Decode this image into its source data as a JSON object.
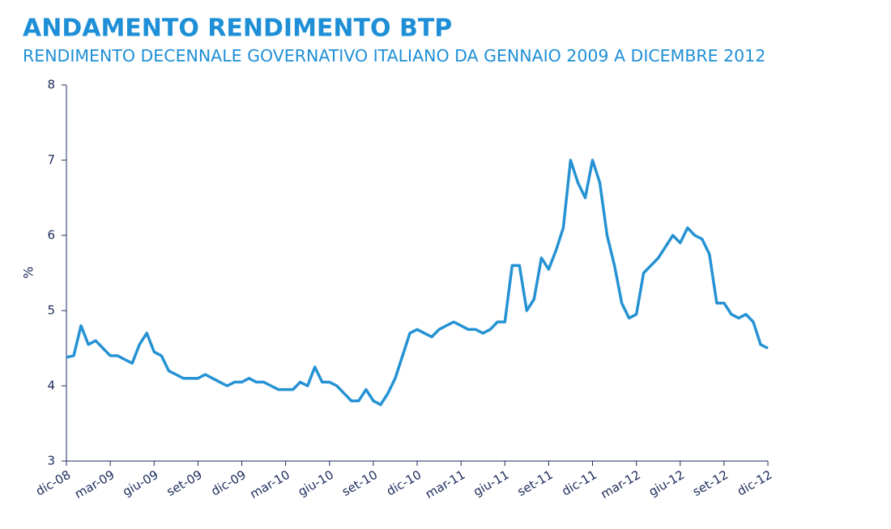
{
  "chart_data": {
    "type": "line",
    "title": "ANDAMENTO RENDIMENTO BTP",
    "subtitle": "RENDIMENTO DECENNALE GOVERNATIVO ITALIANO DA GENNAIO 2009 A DICEMBRE 2012",
    "y_label": "%",
    "color": "#2592d3",
    "categories": [
      "dic-08",
      null,
      null,
      null,
      null,
      null,
      "mar-09",
      null,
      null,
      null,
      null,
      null,
      "giu-09",
      null,
      null,
      null,
      null,
      null,
      "set-09",
      null,
      null,
      null,
      null,
      null,
      "dic-09",
      null,
      null,
      null,
      null,
      null,
      "mar-10",
      null,
      null,
      null,
      null,
      null,
      "giu-10",
      null,
      null,
      null,
      null,
      null,
      "set-10",
      null,
      null,
      null,
      null,
      null,
      "dic-10",
      null,
      null,
      null,
      null,
      null,
      "mar-11",
      null,
      null,
      null,
      null,
      null,
      "giu-11",
      null,
      null,
      null,
      null,
      null,
      "set-11",
      null,
      null,
      null,
      null,
      null,
      "dic-11",
      null,
      null,
      null,
      null,
      null,
      "mar-12",
      null,
      null,
      null,
      null,
      null,
      "giu-12",
      null,
      null,
      null,
      null,
      null,
      "set-12",
      null,
      null,
      null,
      null,
      null,
      "dic-12"
    ],
    "values": [
      4.38,
      4.4,
      4.8,
      4.55,
      4.6,
      4.5,
      4.4,
      4.4,
      4.35,
      4.3,
      4.55,
      4.7,
      4.45,
      4.4,
      4.2,
      4.15,
      4.1,
      4.1,
      4.1,
      4.15,
      4.1,
      4.05,
      4.0,
      4.05,
      4.05,
      4.1,
      4.05,
      4.05,
      4.0,
      3.95,
      3.95,
      3.95,
      4.05,
      4.0,
      4.25,
      4.05,
      4.05,
      4.0,
      3.9,
      3.8,
      3.8,
      3.95,
      3.8,
      3.75,
      3.9,
      4.1,
      4.4,
      4.7,
      4.75,
      4.7,
      4.65,
      4.75,
      4.8,
      4.85,
      4.8,
      4.75,
      4.75,
      4.7,
      4.75,
      4.85,
      4.85,
      5.6,
      5.6,
      5.0,
      5.15,
      5.7,
      5.55,
      5.8,
      6.1,
      7.0,
      6.7,
      6.5,
      7.0,
      6.7,
      6.0,
      5.6,
      5.1,
      4.9,
      4.95,
      5.5,
      5.6,
      5.7,
      5.85,
      6.0,
      5.9,
      6.1,
      6.0,
      5.95,
      5.75,
      5.1,
      5.1,
      4.95,
      4.9,
      4.95,
      4.85,
      4.55,
      4.5
    ],
    "ylim": [
      3,
      8
    ],
    "yticks": [
      3,
      4,
      5,
      6,
      7,
      8
    ]
  }
}
